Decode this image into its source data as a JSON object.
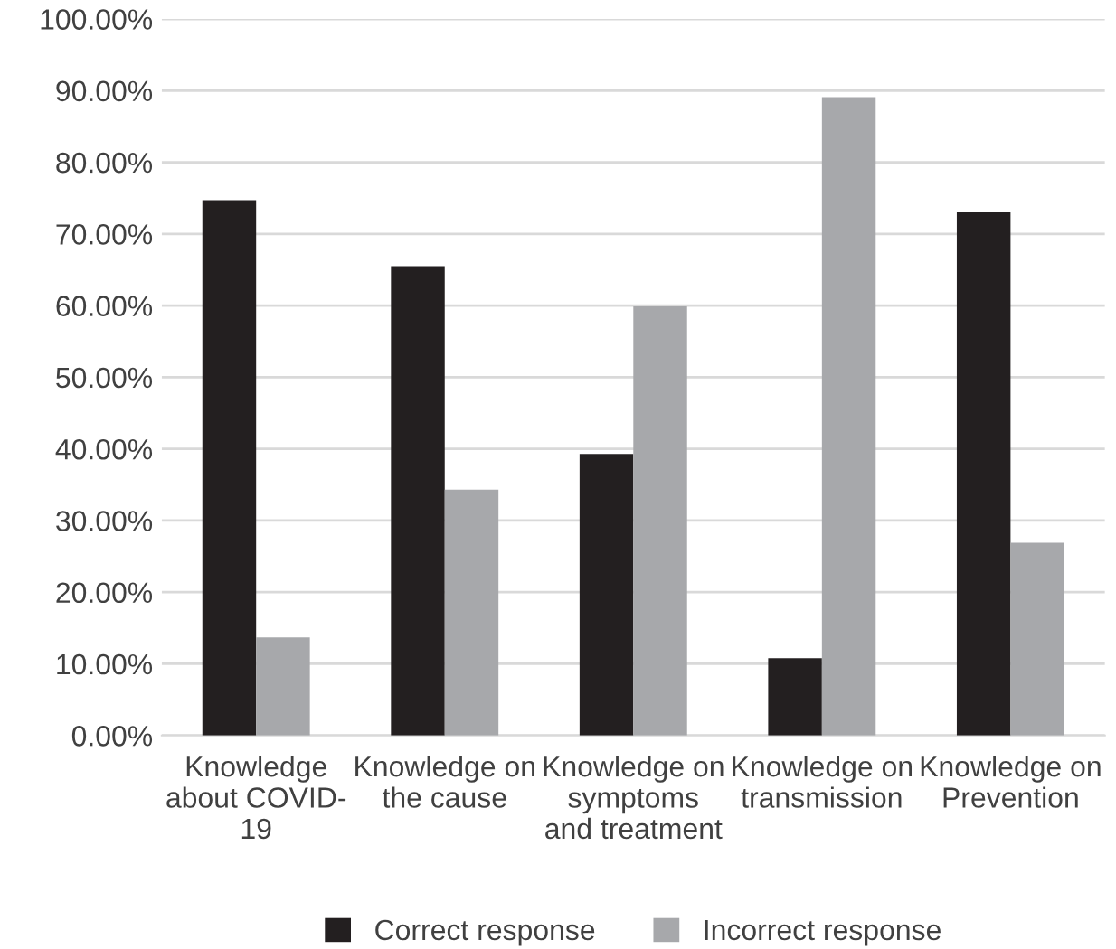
{
  "chart_data": {
    "type": "bar",
    "categories": [
      "Knowledge\nabout COVID-\n19",
      "Knowledge on\nthe cause",
      "Knowledge on\nsymptoms\nand treatment",
      "Knowledge on\ntransmission",
      "Knowledge on\nPrevention"
    ],
    "series": [
      {
        "name": "Correct response",
        "color": "#231f20",
        "values": [
          74.7,
          65.5,
          39.3,
          10.8,
          73.0
        ]
      },
      {
        "name": "Incorrect response",
        "color": "#a7a8ab",
        "values": [
          13.7,
          34.3,
          59.9,
          89.1,
          26.9
        ]
      }
    ],
    "ylim": [
      0,
      100
    ],
    "yticks": [
      {
        "value": 0,
        "label": "0.00%"
      },
      {
        "value": 10,
        "label": "10.00%"
      },
      {
        "value": 20,
        "label": "20.00%"
      },
      {
        "value": 30,
        "label": "30.00%"
      },
      {
        "value": 40,
        "label": "40.00%"
      },
      {
        "value": 50,
        "label": "50.00%"
      },
      {
        "value": 60,
        "label": "60.00%"
      },
      {
        "value": 70,
        "label": "70.00%"
      },
      {
        "value": 80,
        "label": "80.00%"
      },
      {
        "value": 90,
        "label": "90.00%"
      },
      {
        "value": 100,
        "label": "100.00%"
      }
    ],
    "grid": "y",
    "legend": "bottom"
  }
}
